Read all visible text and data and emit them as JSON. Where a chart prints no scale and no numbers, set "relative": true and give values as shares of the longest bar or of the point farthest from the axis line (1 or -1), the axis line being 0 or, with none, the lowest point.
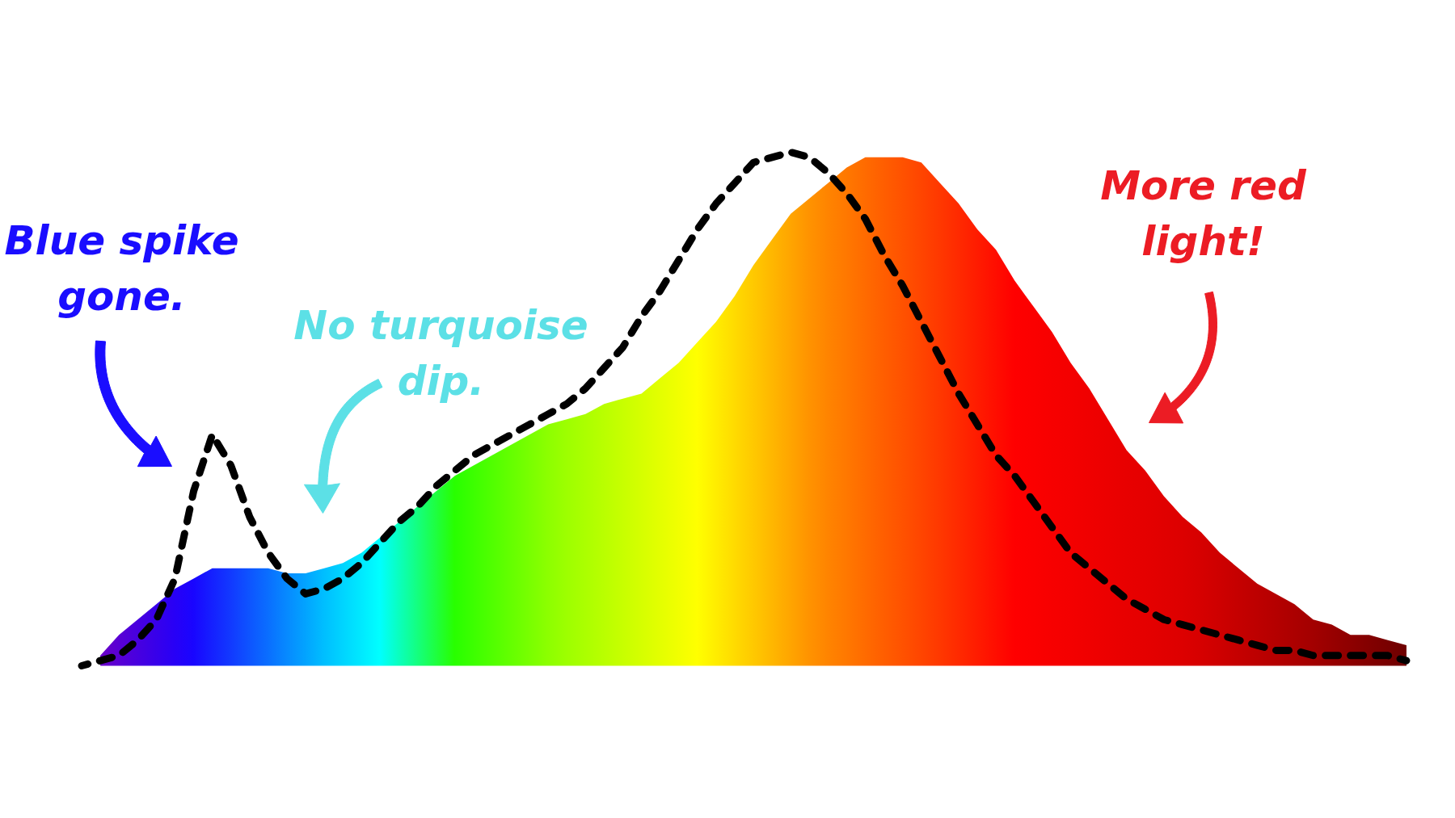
{
  "chart_data": {
    "type": "area",
    "relative": true,
    "categories": [
      null,
      null,
      null,
      null,
      null,
      null,
      null,
      null,
      null,
      null,
      null,
      null,
      null,
      null,
      null,
      null,
      null,
      null,
      null,
      null,
      null,
      null,
      null,
      null,
      null,
      null,
      null,
      null,
      null,
      null,
      null,
      null,
      null,
      null,
      null,
      null,
      null,
      null,
      null,
      null,
      null,
      null,
      null,
      null,
      null,
      null,
      null,
      null,
      null,
      null,
      null,
      null,
      null,
      null,
      null,
      null,
      null,
      null,
      null,
      null,
      null,
      null,
      null,
      null,
      null,
      null,
      null,
      null,
      null,
      null,
      null,
      null
    ],
    "series": [
      {
        "colors": [
          null,
          "#6a00c8",
          "#5900d4",
          "#4800df",
          "#3800ea",
          "#2800f6",
          "#1905ff",
          "#1520ff",
          "#1239ff",
          "#0e54ff",
          "#0a6eff",
          "#0789ff",
          "#03a3ff",
          "#00beff",
          "#00d4ff",
          "#00e9ff",
          "#00ffff",
          "#0affbf",
          "#14ff80",
          "#1eff40",
          "#28ff00",
          "#3cff00",
          "#50ff00",
          "#64ff00",
          "#78ff00",
          "#8cff00",
          "#9dff00",
          "#abff00",
          "#b9ff00",
          "#c7ff00",
          "#d5ff00",
          "#e3ff00",
          "#f1ff00",
          "#ffff00",
          "#ffed00",
          "#ffdb00",
          "#ffc900",
          "#ffb700",
          "#ffa500",
          "#ff9300",
          "#ff8400",
          "#ff7800",
          "#ff6b00",
          "#ff5e00",
          "#ff5200",
          "#ff4500",
          "#ff3800",
          "#ff2a00",
          "#ff1c00",
          "#ff0e00",
          "#ff0000",
          "#fb0000",
          "#f70000",
          "#f40000",
          "#f00000",
          "#ec0000",
          "#e80000",
          "#e50000",
          "#e10000",
          "#dd0000",
          "#d60000",
          "#ce0000",
          "#c50000",
          "#bd0000",
          "#b50000",
          "#ac0000",
          "#a30000",
          "#980000",
          "#8e0000",
          "#830000",
          "#790000",
          "#6e0000"
        ],
        "values": [
          null,
          0.02,
          0.06,
          0.09,
          0.12,
          0.15,
          0.17,
          0.19,
          0.19,
          0.19,
          0.19,
          0.18,
          0.18,
          0.19,
          0.2,
          0.22,
          0.25,
          0.28,
          0.31,
          0.34,
          0.37,
          0.39,
          0.41,
          0.43,
          0.45,
          0.47,
          0.48,
          0.49,
          0.51,
          0.52,
          0.53,
          0.56,
          0.59,
          0.63,
          0.67,
          0.72,
          0.78,
          0.83,
          0.88,
          0.91,
          0.94,
          0.97,
          0.99,
          0.99,
          0.99,
          0.98,
          0.94,
          0.9,
          0.85,
          0.81,
          0.75,
          0.7,
          0.65,
          0.59,
          0.54,
          0.48,
          0.42,
          0.38,
          0.33,
          0.29,
          0.26,
          0.22,
          0.19,
          0.16,
          0.14,
          0.12,
          0.09,
          0.08,
          0.06,
          0.06,
          0.05,
          0.04
        ]
      },
      {
        "type": "line",
        "color": "#000000",
        "line_style": "dashed",
        "values": [
          0.0,
          0.01,
          0.02,
          0.05,
          0.09,
          0.17,
          0.34,
          0.45,
          0.39,
          0.29,
          0.22,
          0.17,
          0.14,
          0.15,
          0.17,
          0.2,
          0.24,
          0.28,
          0.31,
          0.35,
          0.38,
          0.41,
          0.43,
          0.45,
          0.47,
          0.49,
          0.51,
          0.54,
          0.58,
          0.62,
          0.68,
          0.73,
          0.79,
          0.85,
          0.9,
          0.94,
          0.98,
          0.99,
          1.0,
          0.99,
          0.96,
          0.92,
          0.87,
          0.8,
          0.74,
          0.67,
          0.6,
          0.53,
          0.47,
          0.41,
          0.37,
          0.32,
          0.27,
          0.22,
          0.19,
          0.16,
          0.13,
          0.11,
          0.09,
          0.08,
          0.07,
          0.06,
          0.05,
          0.04,
          0.03,
          0.03,
          0.02,
          0.02,
          0.02,
          0.02,
          0.02,
          0.01
        ]
      }
    ],
    "annotations": [
      "Blue spike gone.",
      "No turquoise dip.",
      "More red light!"
    ]
  }
}
